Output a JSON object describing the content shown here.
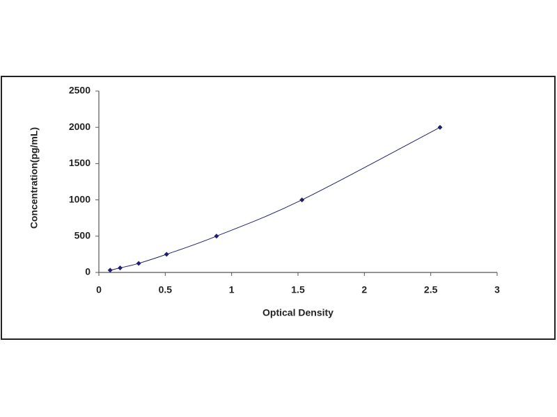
{
  "chart_data": {
    "type": "scatter",
    "xlabel": "Optical Density",
    "ylabel": "Concentration(pg/mL)",
    "series": [
      {
        "color": "#1f1f6e",
        "x": [
          0.085,
          0.16,
          0.3,
          0.51,
          0.886,
          1.53,
          2.57
        ],
        "values": [
          31,
          62.5,
          125,
          250,
          500,
          1000,
          2000
        ]
      }
    ],
    "connect": true,
    "xlim": [
      0,
      3
    ],
    "xticks": [
      0,
      0.5,
      1,
      1.5,
      2,
      2.5,
      3
    ],
    "ylim": [
      0,
      2500
    ],
    "yticks": [
      0,
      500,
      1000,
      1500,
      2000,
      2500
    ],
    "grid": false
  }
}
